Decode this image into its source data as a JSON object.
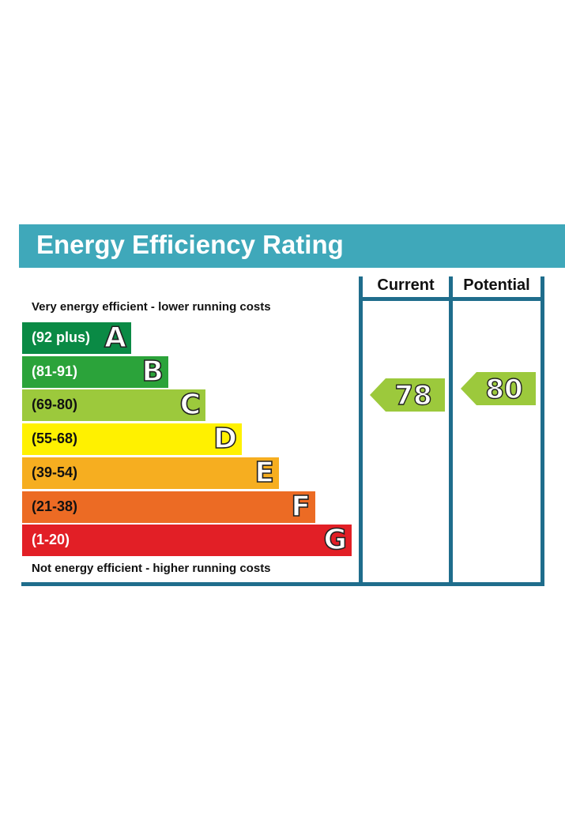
{
  "title": "Energy Efficiency Rating",
  "top_caption": "Very energy efficient - lower running costs",
  "bottom_caption": "Not energy efficient - higher running costs",
  "columns": {
    "current": "Current",
    "potential": "Potential"
  },
  "chart_data": {
    "type": "bar",
    "title": "Energy Efficiency Rating",
    "categories": [
      "A",
      "B",
      "C",
      "D",
      "E",
      "F",
      "G"
    ],
    "bands": [
      {
        "letter": "A",
        "range": "(92 plus)",
        "color": "#0a8a45",
        "text_color": "#ffffff"
      },
      {
        "letter": "B",
        "range": "(81-91)",
        "color": "#2ba33a",
        "text_color": "#ffffff"
      },
      {
        "letter": "C",
        "range": "(69-80)",
        "color": "#9cc93c",
        "text_color": "#111111"
      },
      {
        "letter": "D",
        "range": "(55-68)",
        "color": "#fff100",
        "text_color": "#111111"
      },
      {
        "letter": "E",
        "range": "(39-54)",
        "color": "#f6ae20",
        "text_color": "#111111"
      },
      {
        "letter": "F",
        "range": "(21-38)",
        "color": "#ec6b24",
        "text_color": "#111111"
      },
      {
        "letter": "G",
        "range": "(1-20)",
        "color": "#e21f26",
        "text_color": "#ffffff"
      }
    ],
    "current": {
      "value": 78,
      "band": "C",
      "color": "#9cc93c"
    },
    "potential": {
      "value": 80,
      "band": "C",
      "color": "#9cc93c"
    }
  }
}
